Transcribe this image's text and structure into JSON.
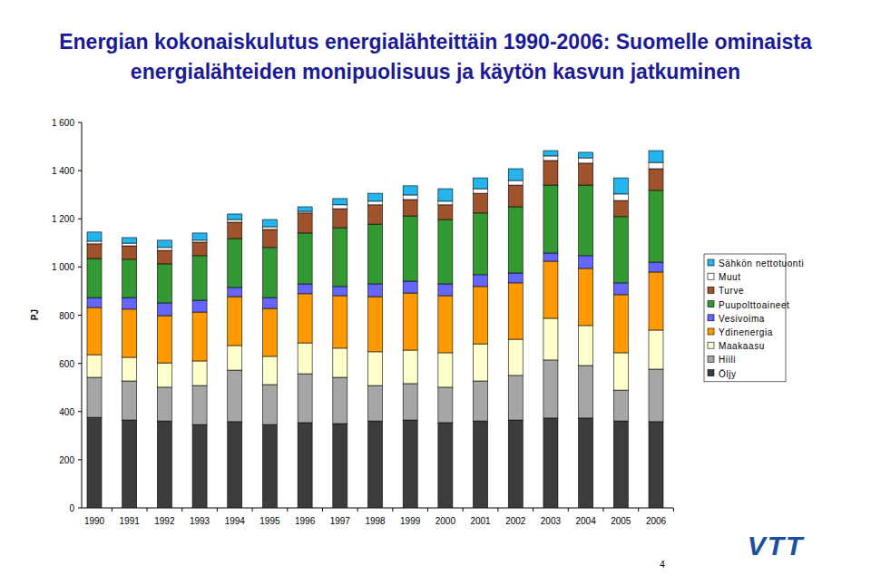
{
  "chart_data": {
    "type": "bar",
    "stacked": true,
    "legend": "right",
    "title": "Energian kokonaiskulutus energialähteittäin 1990-2006: Suomelle ominaista\nenergialähteiden monipuolisuus ja käytön kasvun jatkuminen",
    "y_label": "PJ",
    "categories": [
      "1990",
      "1991",
      "1992",
      "1993",
      "1994",
      "1995",
      "1996",
      "1997",
      "1998",
      "1999",
      "2000",
      "2001",
      "2002",
      "2003",
      "2004",
      "2005",
      "2006"
    ],
    "ylim": [
      0,
      1600
    ],
    "yticks": [
      0,
      200,
      400,
      600,
      800,
      {
        "value": 1000,
        "label": "1 000"
      },
      {
        "value": 1200,
        "label": "1 200"
      },
      {
        "value": 1400,
        "label": "1 400"
      },
      {
        "value": 1600,
        "label": "1 600"
      }
    ],
    "series": [
      {
        "name": "Öljy",
        "color": "#3c3c3c",
        "values": [
          376,
          365,
          361,
          346,
          358,
          346,
          354,
          350,
          361,
          365,
          354,
          361,
          365,
          373,
          373,
          361,
          358
        ]
      },
      {
        "name": "Hiili",
        "color": "#a6a6a6",
        "values": [
          166,
          162,
          140,
          162,
          214,
          166,
          203,
          192,
          147,
          151,
          147,
          166,
          185,
          241,
          218,
          128,
          218
        ]
      },
      {
        "name": "Maakaasu",
        "color": "#ffffcc",
        "values": [
          94,
          98,
          101,
          102,
          102,
          117,
          128,
          121,
          140,
          139,
          143,
          154,
          150,
          173,
          166,
          155,
          162
        ]
      },
      {
        "name": "Ydinenergia",
        "color": "#ff9900",
        "values": [
          196,
          200,
          196,
          203,
          203,
          199,
          204,
          218,
          229,
          237,
          237,
          238,
          234,
          237,
          237,
          241,
          241
        ]
      },
      {
        "name": "Vesivoima",
        "color": "#6666ff",
        "values": [
          41,
          48,
          53,
          49,
          38,
          45,
          41,
          38,
          53,
          49,
          49,
          49,
          41,
          34,
          53,
          49,
          41
        ]
      },
      {
        "name": "Puupolttoaineet",
        "color": "#339933",
        "values": [
          162,
          159,
          162,
          185,
          203,
          208,
          211,
          244,
          248,
          271,
          267,
          256,
          275,
          282,
          293,
          275,
          298
        ]
      },
      {
        "name": "Turve",
        "color": "#a0522d",
        "values": [
          61,
          56,
          56,
          56,
          68,
          75,
          83,
          79,
          80,
          68,
          61,
          82,
          90,
          102,
          91,
          67,
          90
        ]
      },
      {
        "name": "Muut",
        "color": "#ffffff",
        "values": [
          11,
          11,
          12,
          8,
          11,
          11,
          7,
          16,
          15,
          19,
          15,
          19,
          19,
          19,
          22,
          27,
          26
        ]
      },
      {
        "name": "Sähkön nettotuonti",
        "color": "#22b5ee",
        "values": [
          38,
          23,
          30,
          30,
          23,
          30,
          19,
          26,
          33,
          38,
          52,
          45,
          49,
          22,
          23,
          67,
          49
        ]
      }
    ]
  },
  "page": {
    "number": "4",
    "logo": "VTT"
  }
}
